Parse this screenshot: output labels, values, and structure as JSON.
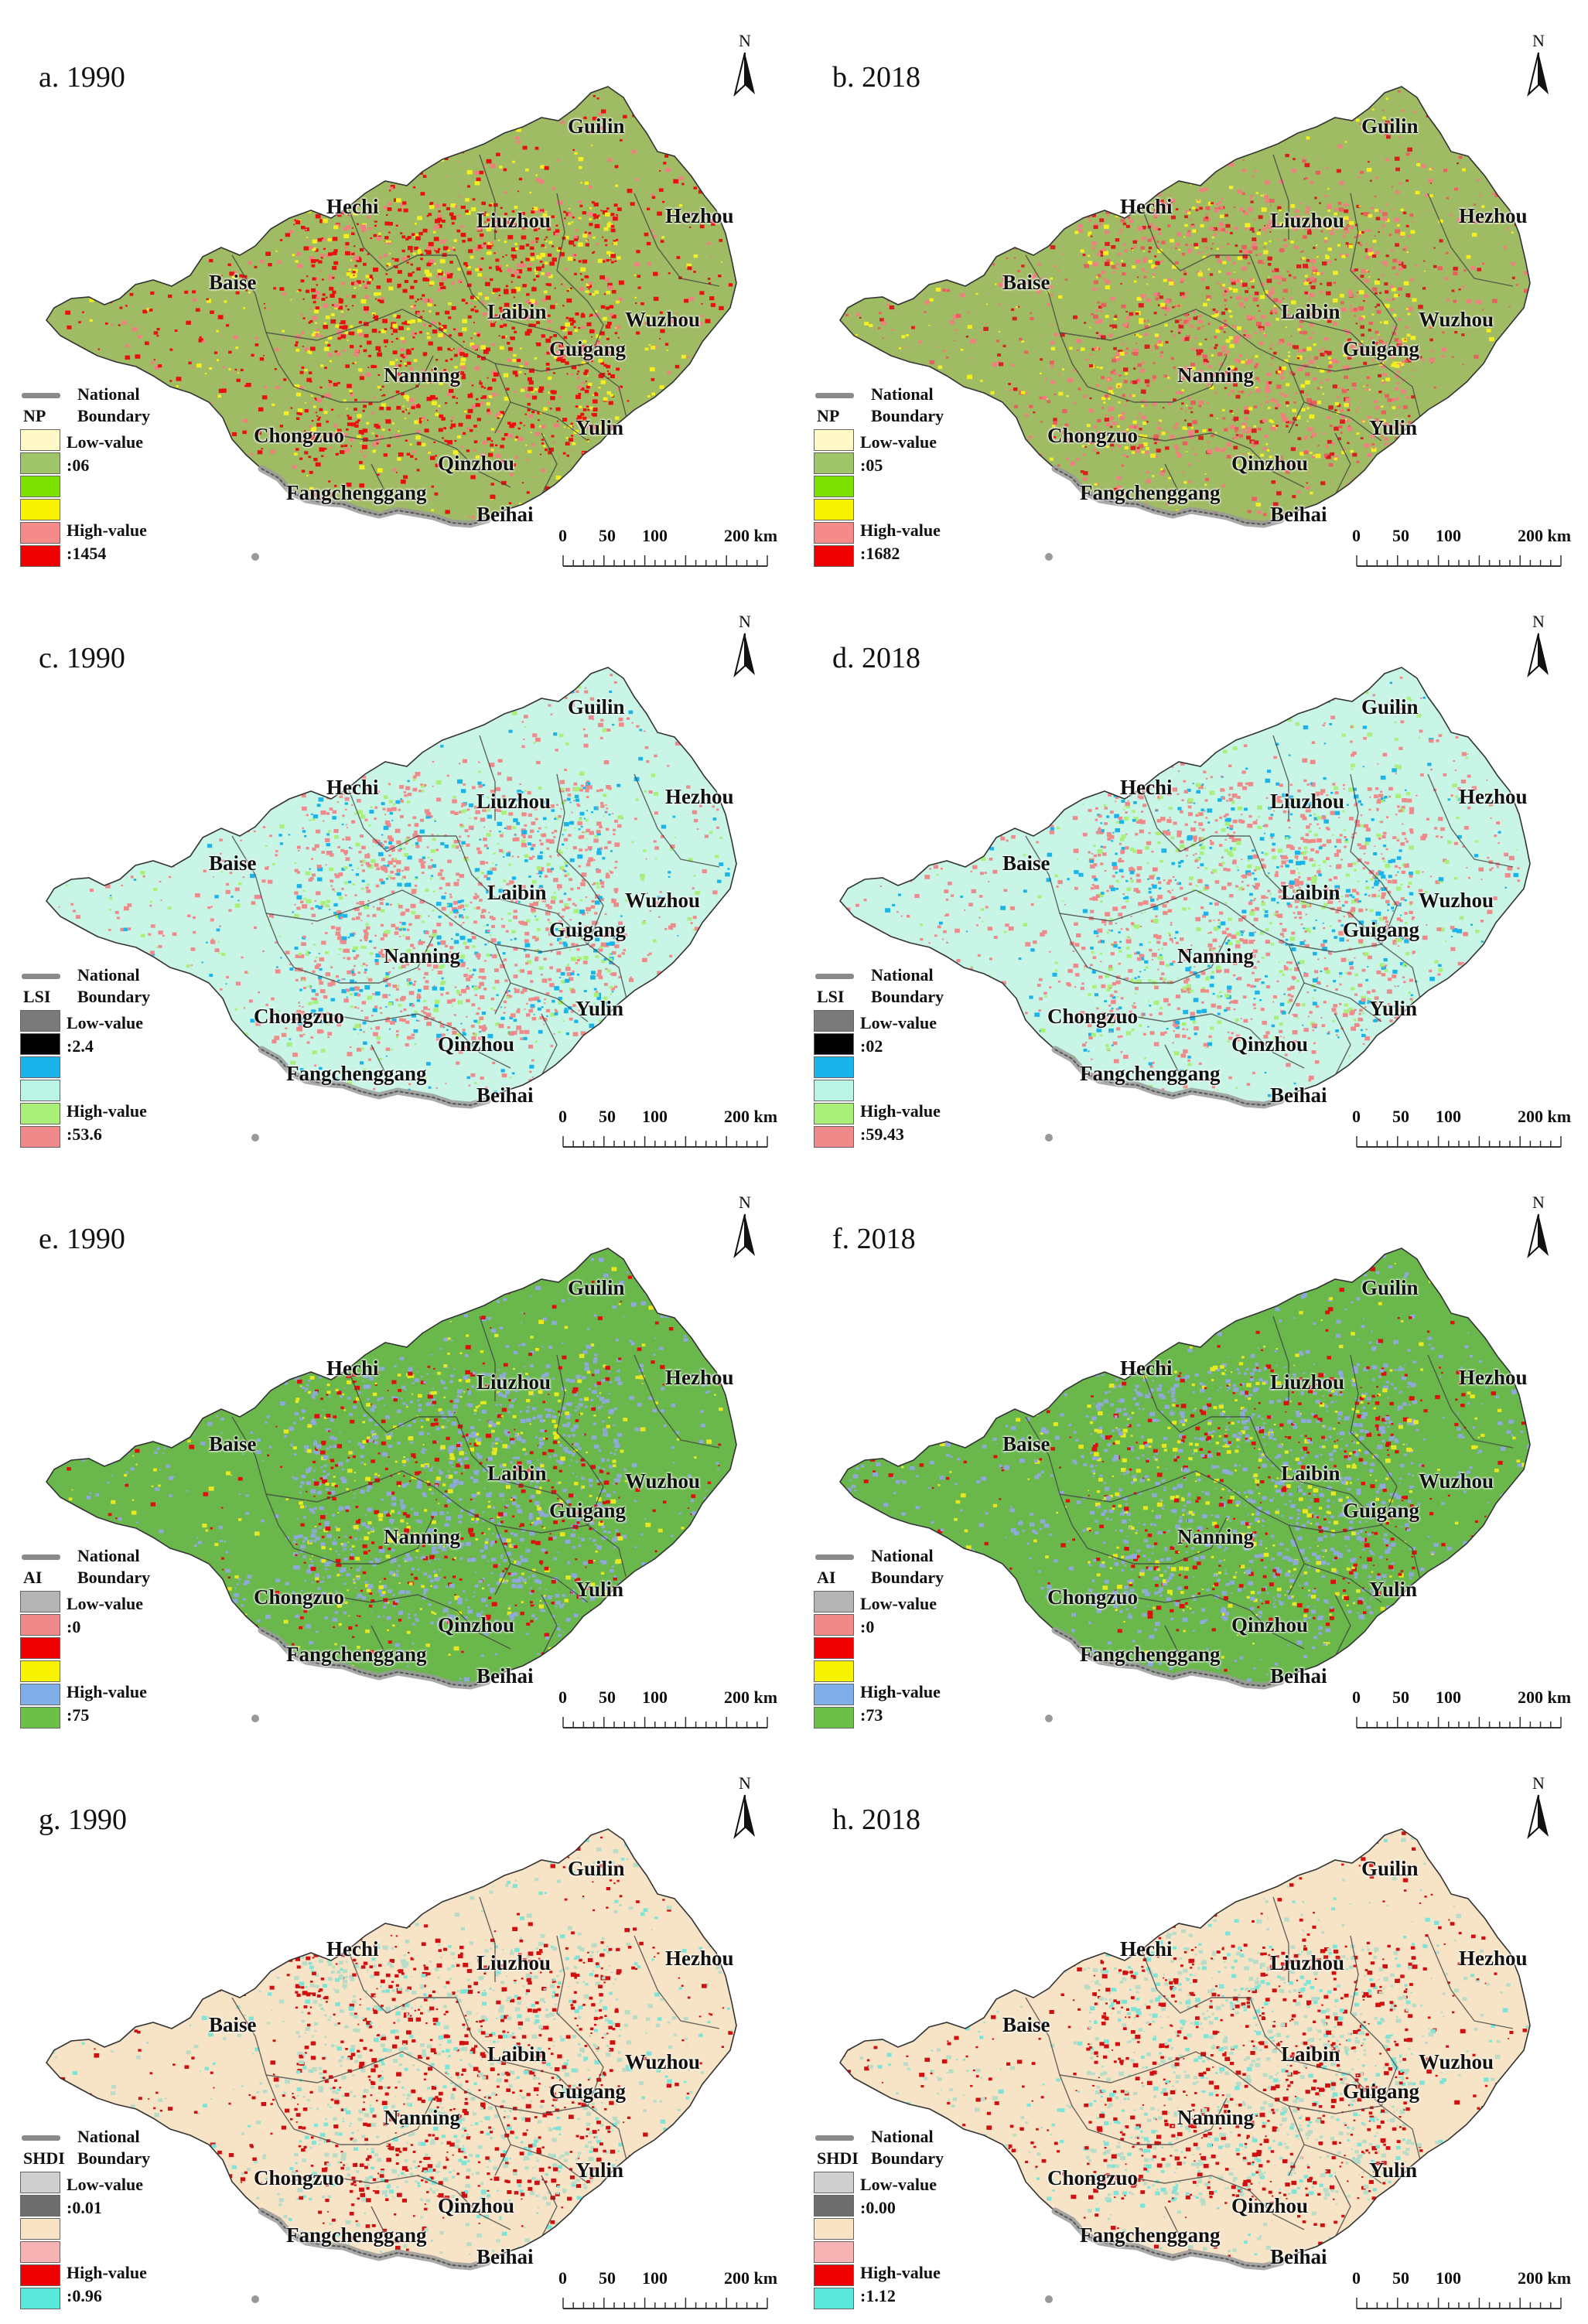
{
  "boundary_label": "National Boundary",
  "north_label": "N",
  "scale_labels": [
    "0",
    "50",
    "100",
    "200 km"
  ],
  "cities": {
    "guilin": "Guilin",
    "hechi": "Hechi",
    "liuzhou": "Liuzhou",
    "hezhou": "Hezhou",
    "baise": "Baise",
    "laibin": "Laibin",
    "wuzhou": "Wuzhou",
    "guigang": "Guigang",
    "nanning": "Nanning",
    "chongzuo": "Chongzuo",
    "yulin": "Yulin",
    "qinzhou": "Qinzhou",
    "fangchenggang": "Fangchenggang",
    "beihai": "Beihai"
  },
  "panels": [
    {
      "title": "a. 1990",
      "index": "NP",
      "low_label": "Low-value",
      "low_value": ":06",
      "high_label": "High-value",
      "high_value": ":1454",
      "legend_colors": [
        "#fff9c8",
        "#9fc46a",
        "#7ee000",
        "#f7f200",
        "#f58a8a",
        "#ee0000"
      ],
      "map_base": "#9fbb63",
      "map_spots": [
        "#e81010",
        "#e81010",
        "#e81010",
        "#f08080",
        "#f5ef20"
      ]
    },
    {
      "title": "b. 2018",
      "index": "NP",
      "low_label": "Low-value",
      "low_value": ":05",
      "high_label": "High-value",
      "high_value": ":1682",
      "legend_colors": [
        "#fff9c8",
        "#9fc46a",
        "#7ee000",
        "#f7f200",
        "#f58a8a",
        "#ee0000"
      ],
      "map_base": "#9fbb63",
      "map_spots": [
        "#e86060",
        "#f08080",
        "#d82020",
        "#f5ef20",
        "#f08080"
      ]
    },
    {
      "title": "c. 1990",
      "index": "LSI",
      "low_label": "Low-value",
      "low_value": ":2.4",
      "high_label": "High-value",
      "high_value": ":53.6",
      "legend_colors": [
        "#7a7a7a",
        "#000000",
        "#1ab4ea",
        "#b9f4e4",
        "#a9f07a",
        "#f08a8a"
      ],
      "map_base": "#c8f5e6",
      "map_spots": [
        "#ef8a8a",
        "#ef8a8a",
        "#ef8a8a",
        "#a9f07a",
        "#1ab4ea"
      ]
    },
    {
      "title": "d. 2018",
      "index": "LSI",
      "low_label": "Low-value",
      "low_value": ":02",
      "high_label": "High-value",
      "high_value": ":59.43",
      "legend_colors": [
        "#7a7a7a",
        "#000000",
        "#1ab4ea",
        "#b9f4e4",
        "#a9f07a",
        "#f08a8a"
      ],
      "map_base": "#c8f5e6",
      "map_spots": [
        "#ef8a8a",
        "#ef8a8a",
        "#ef8a8a",
        "#1ab4ea",
        "#a9f07a"
      ]
    },
    {
      "title": "e. 1990",
      "index": "AI",
      "low_label": "Low-value",
      "low_value": ":0",
      "high_label": "High-value",
      "high_value": ":75",
      "legend_colors": [
        "#b4b4b4",
        "#f08a8a",
        "#ee0000",
        "#f7f200",
        "#80aee8",
        "#6cc04a"
      ],
      "map_base": "#6ab84c",
      "map_spots": [
        "#8fa9d8",
        "#8fa9d8",
        "#e8e820",
        "#8fa9d8",
        "#dd1010"
      ]
    },
    {
      "title": "f. 2018",
      "index": "AI",
      "low_label": "Low-value",
      "low_value": ":0",
      "high_label": "High-value",
      "high_value": ":73",
      "legend_colors": [
        "#b4b4b4",
        "#f08a8a",
        "#ee0000",
        "#f7f200",
        "#80aee8",
        "#6cc04a"
      ],
      "map_base": "#6ab84c",
      "map_spots": [
        "#8fa9d8",
        "#8fa9d8",
        "#e8e820",
        "#dd1010",
        "#8fa9d8"
      ]
    },
    {
      "title": "g. 1990",
      "index": "SHDI",
      "low_label": "Low-value",
      "low_value": ":0.01",
      "high_label": "High-value",
      "high_value": ":0.96",
      "legend_colors": [
        "#cfcfcf",
        "#6e6e6e",
        "#f8e4c4",
        "#f5b3b3",
        "#ee0000",
        "#5ae8dc"
      ],
      "map_base": "#f7e4c6",
      "map_spots": [
        "#b8dcc8",
        "#d01010",
        "#7ee4d8",
        "#b8dcc8",
        "#d01010"
      ]
    },
    {
      "title": "h. 2018",
      "index": "SHDI",
      "low_label": "Low-value",
      "low_value": ":0.00",
      "high_label": "High-value",
      "high_value": ":1.12",
      "legend_colors": [
        "#cfcfcf",
        "#6e6e6e",
        "#f8e4c4",
        "#f5b3b3",
        "#ee0000",
        "#5ae8dc"
      ],
      "map_base": "#f7e4c6",
      "map_spots": [
        "#b8dcc8",
        "#d01010",
        "#7ee4d8",
        "#b8dcc8",
        "#d01010"
      ]
    }
  ]
}
